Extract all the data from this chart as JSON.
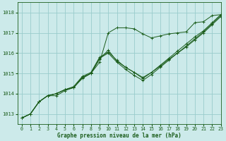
{
  "title": "Graphe pression niveau de la mer (hPa)",
  "background_color": "#cceaea",
  "grid_color": "#99cccc",
  "line_color": "#1a5c1a",
  "xlim": [
    -0.5,
    23
  ],
  "ylim": [
    1012.5,
    1018.5
  ],
  "yticks": [
    1013,
    1014,
    1015,
    1016,
    1017,
    1018
  ],
  "xticks": [
    0,
    1,
    2,
    3,
    4,
    5,
    6,
    7,
    8,
    9,
    10,
    11,
    12,
    13,
    14,
    15,
    16,
    17,
    18,
    19,
    20,
    21,
    22,
    23
  ],
  "series": [
    {
      "x": [
        0,
        1,
        2,
        3,
        4,
        5,
        6,
        7,
        8,
        9,
        10,
        11,
        12,
        13,
        14,
        15,
        16,
        17,
        18,
        19,
        20,
        21,
        22,
        23
      ],
      "y": [
        1012.8,
        1013.0,
        1013.6,
        1013.9,
        1013.9,
        1014.15,
        1014.3,
        1014.75,
        1015.0,
        1015.55,
        1017.0,
        1017.25,
        1017.25,
        1017.2,
        1016.95,
        1016.75,
        1016.85,
        1016.95,
        1017.0,
        1017.05,
        1017.5,
        1017.55,
        1017.85,
        1017.9
      ]
    },
    {
      "x": [
        0,
        1,
        2,
        3,
        4,
        5,
        6,
        7,
        8,
        9,
        10,
        11,
        12,
        13,
        14,
        15,
        16,
        17,
        18,
        19,
        20,
        21,
        22,
        23
      ],
      "y": [
        1012.8,
        1013.0,
        1013.6,
        1013.9,
        1014.0,
        1014.2,
        1014.3,
        1014.8,
        1015.0,
        1015.7,
        1016.15,
        1015.6,
        1015.3,
        1015.05,
        1014.8,
        1015.05,
        1015.35,
        1015.7,
        1016.0,
        1016.3,
        1016.65,
        1017.0,
        1017.4,
        1017.8
      ]
    },
    {
      "x": [
        0,
        1,
        2,
        3,
        4,
        5,
        6,
        7,
        8,
        9,
        10,
        11,
        12,
        13,
        14,
        15,
        16,
        17,
        18,
        19,
        20,
        21,
        22,
        23
      ],
      "y": [
        1012.8,
        1013.0,
        1013.6,
        1013.9,
        1014.0,
        1014.2,
        1014.3,
        1014.8,
        1015.0,
        1015.75,
        1016.0,
        1015.55,
        1015.2,
        1014.9,
        1014.65,
        1014.95,
        1015.3,
        1015.65,
        1016.0,
        1016.35,
        1016.7,
        1017.05,
        1017.45,
        1017.85
      ]
    },
    {
      "x": [
        0,
        1,
        2,
        3,
        4,
        5,
        6,
        7,
        8,
        9,
        10,
        11,
        12,
        13,
        14,
        15,
        16,
        17,
        18,
        19,
        20,
        21,
        22,
        23
      ],
      "y": [
        1012.8,
        1013.0,
        1013.6,
        1013.9,
        1014.0,
        1014.2,
        1014.35,
        1014.85,
        1015.05,
        1015.8,
        1016.05,
        1015.65,
        1015.3,
        1015.05,
        1014.75,
        1015.05,
        1015.4,
        1015.75,
        1016.1,
        1016.45,
        1016.8,
        1017.1,
        1017.5,
        1017.9
      ]
    }
  ]
}
